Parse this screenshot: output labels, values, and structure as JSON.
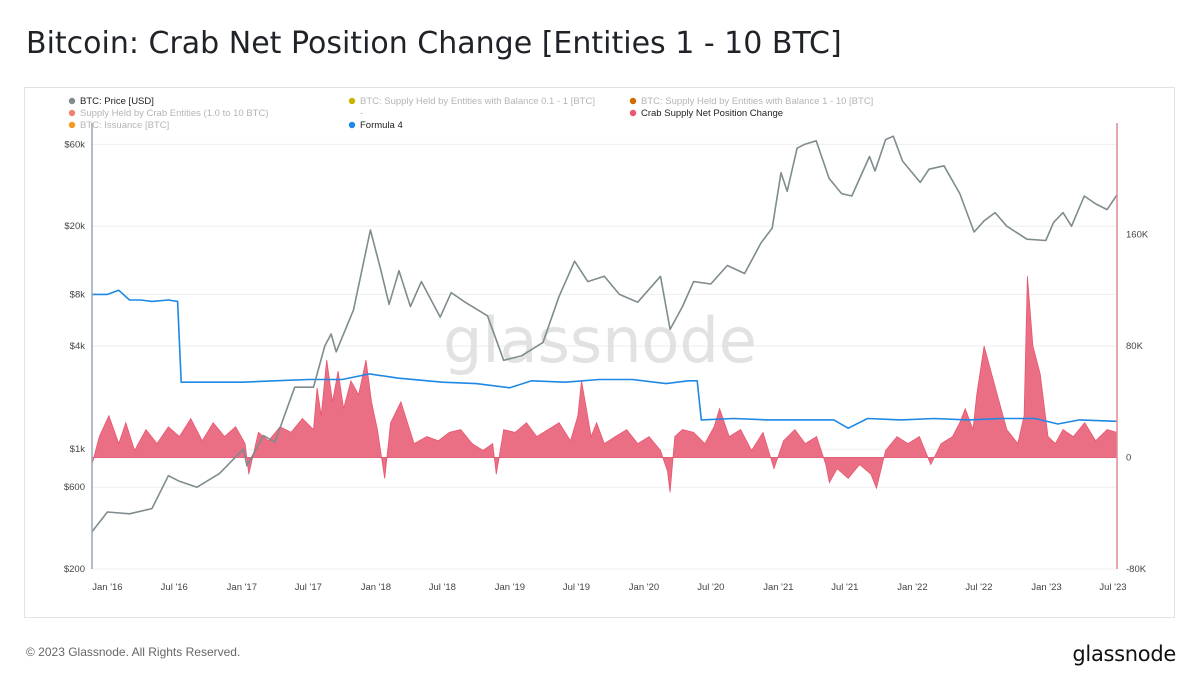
{
  "page": {
    "title": "Bitcoin: Crab Net Position Change [Entities 1 - 10 BTC]",
    "copyright": "© 2023 Glassnode. All Rights Reserved.",
    "brand": "glassnode",
    "watermark": "glassnode"
  },
  "colors": {
    "price": "#7f8c8d",
    "formula": "#1e88e5",
    "crab": "#e8566f",
    "crab_fill": "#e8566f",
    "grid": "#eeeeee",
    "right_axis": "#e08a95",
    "left_axis": "#9aa6b2"
  },
  "chart_data": {
    "type": "line",
    "legend": [
      {
        "label": "BTC: Price [USD]",
        "color": "#7f8c8d",
        "active": true
      },
      {
        "label": "BTC: Supply Held by Entities with Balance 0.1 - 1 [BTC]",
        "color": "#c9b400",
        "active": false
      },
      {
        "label": "BTC: Supply Held by Entities with Balance 1 - 10 [BTC]",
        "color": "#d46a00",
        "active": false
      },
      {
        "label": "Supply Held by Crab Entities (1.0 to 10 BTC)",
        "color": "#f08070",
        "active": false
      },
      {
        "label": "-",
        "color": "",
        "active": false
      },
      {
        "label": "Crab Supply Net Position Change",
        "color": "#e8566f",
        "active": true
      },
      {
        "label": "BTC: Issuance [BTC]",
        "color": "#f59a1e",
        "active": false
      },
      {
        "label": "Formula 4",
        "color": "#1e88e5",
        "active": true
      }
    ],
    "x_ticks": [
      "Jan '16",
      "Jul '16",
      "Jan '17",
      "Jul '17",
      "Jan '18",
      "Jul '18",
      "Jan '19",
      "Jul '19",
      "Jan '20",
      "Jul '20",
      "Jan '21",
      "Jul '21",
      "Jan '22",
      "Jul '22",
      "Jan '23",
      "Jul '23"
    ],
    "x_range": [
      "2015-11-20",
      "2023-07-12"
    ],
    "left_axis": {
      "scale": "log",
      "ticks": [
        "$200",
        "$600",
        "$1k",
        "$4k",
        "$8k",
        "$20k",
        "$60k"
      ],
      "tick_values": [
        200,
        600,
        1000,
        4000,
        8000,
        20000,
        60000
      ],
      "range": [
        200,
        80000
      ]
    },
    "right_axis": {
      "scale": "linear",
      "ticks": [
        "-80K",
        "0",
        "80K",
        "160K"
      ],
      "tick_values": [
        -80000,
        0,
        80000,
        160000
      ],
      "range": [
        -80000,
        240000
      ]
    },
    "price_series": {
      "name": "BTC: Price [USD]",
      "x": [
        "2015-11-20",
        "2016-01-01",
        "2016-03-01",
        "2016-05-01",
        "2016-06-15",
        "2016-07-15",
        "2016-09-01",
        "2016-11-01",
        "2017-01-05",
        "2017-01-15",
        "2017-03-01",
        "2017-04-01",
        "2017-05-25",
        "2017-07-15",
        "2017-08-15",
        "2017-09-01",
        "2017-09-15",
        "2017-11-01",
        "2017-12-17",
        "2018-01-15",
        "2018-02-06",
        "2018-03-05",
        "2018-04-05",
        "2018-05-05",
        "2018-06-25",
        "2018-07-25",
        "2018-09-01",
        "2018-11-01",
        "2018-12-15",
        "2019-02-01",
        "2019-04-01",
        "2019-05-15",
        "2019-06-26",
        "2019-08-01",
        "2019-09-15",
        "2019-10-26",
        "2019-12-15",
        "2020-02-15",
        "2020-03-12",
        "2020-04-15",
        "2020-05-15",
        "2020-07-01",
        "2020-08-15",
        "2020-10-01",
        "2020-11-15",
        "2020-12-15",
        "2021-01-08",
        "2021-01-25",
        "2021-02-21",
        "2021-03-13",
        "2021-04-14",
        "2021-05-19",
        "2021-06-22",
        "2021-07-20",
        "2021-09-06",
        "2021-09-21",
        "2021-10-20",
        "2021-11-10",
        "2021-12-05",
        "2022-01-22",
        "2022-02-15",
        "2022-03-28",
        "2022-05-10",
        "2022-06-18",
        "2022-07-15",
        "2022-08-14",
        "2022-09-15",
        "2022-11-09",
        "2022-12-30",
        "2023-01-20",
        "2023-02-15",
        "2023-03-10",
        "2023-04-14",
        "2023-05-15",
        "2023-06-15",
        "2023-07-12"
      ],
      "y": [
        330,
        430,
        420,
        450,
        700,
        650,
        600,
        720,
        1000,
        800,
        1200,
        1100,
        2300,
        2300,
        4000,
        4700,
        3700,
        6500,
        19000,
        11000,
        7000,
        11000,
        6800,
        9500,
        5900,
        8200,
        7200,
        6000,
        3300,
        3500,
        4200,
        7800,
        12500,
        9500,
        10200,
        8000,
        7200,
        10200,
        5000,
        6800,
        9500,
        9200,
        11800,
        10600,
        16000,
        19500,
        41000,
        32000,
        57000,
        60000,
        63000,
        38000,
        31000,
        30000,
        51000,
        42000,
        64000,
        67000,
        48000,
        36000,
        43000,
        45000,
        31000,
        18500,
        21500,
        24000,
        20000,
        16800,
        16500,
        21000,
        24000,
        20000,
        30000,
        27000,
        25000,
        30500
      ]
    },
    "formula_series": {
      "name": "Formula 4",
      "x": [
        "2015-11-20",
        "2016-01-01",
        "2016-02-01",
        "2016-03-01",
        "2016-04-01",
        "2016-05-01",
        "2016-06-15",
        "2016-07-10",
        "2016-07-20",
        "2016-10-01",
        "2017-01-01",
        "2017-04-01",
        "2017-07-01",
        "2017-10-01",
        "2017-12-15",
        "2018-03-01",
        "2018-07-01",
        "2018-10-01",
        "2019-01-01",
        "2019-03-01",
        "2019-06-01",
        "2019-09-01",
        "2019-12-01",
        "2020-03-01",
        "2020-05-01",
        "2020-05-25",
        "2020-06-05",
        "2020-09-01",
        "2020-12-01",
        "2021-03-01",
        "2021-06-01",
        "2021-07-10",
        "2021-09-01",
        "2021-12-01",
        "2022-03-01",
        "2022-06-01",
        "2022-09-01",
        "2022-12-01",
        "2023-02-01",
        "2023-04-01",
        "2023-07-12"
      ],
      "y": [
        117000,
        117000,
        120000,
        113000,
        113000,
        112000,
        113000,
        112000,
        54000,
        54000,
        54000,
        55000,
        56000,
        56000,
        60000,
        57000,
        54000,
        53000,
        50000,
        55000,
        54000,
        56000,
        56000,
        53000,
        55000,
        55000,
        27000,
        28000,
        27000,
        27000,
        27000,
        21000,
        28000,
        27000,
        28000,
        27000,
        28000,
        28000,
        24000,
        27000,
        26000
      ]
    },
    "crab_series": {
      "name": "Crab Supply Net Position Change",
      "x": [
        "2015-11-20",
        "2015-12-10",
        "2016-01-05",
        "2016-02-01",
        "2016-02-20",
        "2016-03-15",
        "2016-04-15",
        "2016-05-15",
        "2016-06-15",
        "2016-07-15",
        "2016-08-15",
        "2016-09-15",
        "2016-10-15",
        "2016-11-15",
        "2016-12-15",
        "2017-01-10",
        "2017-01-20",
        "2017-02-15",
        "2017-03-15",
        "2017-04-15",
        "2017-05-15",
        "2017-06-15",
        "2017-07-15",
        "2017-07-25",
        "2017-08-05",
        "2017-08-20",
        "2017-09-05",
        "2017-09-20",
        "2017-10-05",
        "2017-10-25",
        "2017-11-15",
        "2017-12-05",
        "2017-12-20",
        "2018-01-05",
        "2018-01-25",
        "2018-02-10",
        "2018-03-10",
        "2018-04-15",
        "2018-05-20",
        "2018-06-20",
        "2018-07-20",
        "2018-08-20",
        "2018-09-20",
        "2018-10-20",
        "2018-11-15",
        "2018-11-25",
        "2018-12-15",
        "2019-01-15",
        "2019-02-15",
        "2019-03-15",
        "2019-04-15",
        "2019-05-15",
        "2019-06-15",
        "2019-07-05",
        "2019-07-15",
        "2019-07-25",
        "2019-08-10",
        "2019-08-25",
        "2019-09-15",
        "2019-10-15",
        "2019-11-15",
        "2019-12-15",
        "2020-01-15",
        "2020-02-15",
        "2020-03-05",
        "2020-03-12",
        "2020-03-25",
        "2020-04-15",
        "2020-05-15",
        "2020-06-15",
        "2020-07-10",
        "2020-07-25",
        "2020-08-20",
        "2020-09-20",
        "2020-10-20",
        "2020-11-20",
        "2020-12-20",
        "2021-01-15",
        "2021-02-15",
        "2021-03-15",
        "2021-04-15",
        "2021-05-10",
        "2021-05-20",
        "2021-06-10",
        "2021-07-10",
        "2021-08-10",
        "2021-09-10",
        "2021-09-25",
        "2021-10-20",
        "2021-11-20",
        "2021-12-20",
        "2022-01-20",
        "2022-02-20",
        "2022-03-20",
        "2022-04-20",
        "2022-05-10",
        "2022-05-25",
        "2022-06-15",
        "2022-06-25",
        "2022-07-15",
        "2022-08-15",
        "2022-09-15",
        "2022-10-15",
        "2022-11-01",
        "2022-11-10",
        "2022-11-25",
        "2022-12-15",
        "2023-01-05",
        "2023-01-25",
        "2023-02-15",
        "2023-03-15",
        "2023-04-15",
        "2023-05-15",
        "2023-06-15",
        "2023-07-12"
      ],
      "y": [
        -5000,
        15000,
        30000,
        10000,
        25000,
        5000,
        20000,
        10000,
        22000,
        15000,
        28000,
        12000,
        25000,
        15000,
        22000,
        10000,
        -12000,
        18000,
        12000,
        22000,
        18000,
        28000,
        20000,
        50000,
        30000,
        70000,
        40000,
        62000,
        35000,
        55000,
        45000,
        70000,
        40000,
        20000,
        -15000,
        25000,
        40000,
        10000,
        15000,
        12000,
        18000,
        20000,
        10000,
        5000,
        10000,
        -12000,
        20000,
        18000,
        25000,
        15000,
        20000,
        25000,
        12000,
        30000,
        55000,
        40000,
        15000,
        25000,
        10000,
        15000,
        20000,
        10000,
        15000,
        5000,
        -10000,
        -25000,
        15000,
        20000,
        18000,
        10000,
        22000,
        35000,
        15000,
        20000,
        5000,
        18000,
        -8000,
        12000,
        20000,
        10000,
        15000,
        -5000,
        -18000,
        -8000,
        -15000,
        -5000,
        -12000,
        -22000,
        5000,
        15000,
        10000,
        15000,
        -5000,
        10000,
        15000,
        25000,
        35000,
        20000,
        45000,
        80000,
        50000,
        20000,
        10000,
        30000,
        130000,
        80000,
        60000,
        15000,
        10000,
        20000,
        15000,
        25000,
        12000,
        20000,
        18000
      ]
    }
  }
}
